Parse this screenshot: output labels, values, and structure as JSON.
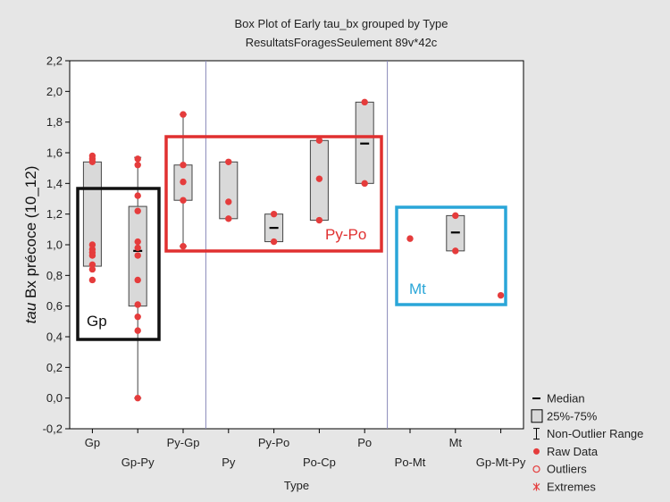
{
  "chart_data": {
    "type": "box",
    "title": "Box Plot of Early tau_bx grouped by  Type",
    "subtitle": "ResultatsForagesSeulement 89v*42c",
    "xlabel": "Type",
    "ylabel_italic": "tau",
    "ylabel_rest": " Bx précoce (10_12)",
    "ylim": [
      -0.2,
      2.2
    ],
    "yticks": [
      "-0,2",
      "0,0",
      "0,2",
      "0,4",
      "0,6",
      "0,8",
      "1,0",
      "1,2",
      "1,4",
      "1,6",
      "1,8",
      "2,0",
      "2,2"
    ],
    "ytick_values": [
      -0.2,
      0,
      0.2,
      0.4,
      0.6,
      0.8,
      1.0,
      1.2,
      1.4,
      1.6,
      1.8,
      2.0,
      2.2
    ],
    "categories": [
      "Gp",
      "Gp-Py",
      "Py-Gp",
      "Py",
      "Py-Po",
      "Po-Cp",
      "Po",
      "Po-Mt",
      "Mt",
      "Gp-Mt-Py"
    ],
    "boxes": [
      {
        "q1": 0.86,
        "q3": 1.54,
        "median": null,
        "whisker_low": null,
        "whisker_high": null
      },
      {
        "q1": 0.6,
        "q3": 1.25,
        "median": 0.96,
        "whisker_low": 0.0,
        "whisker_high": 1.57
      },
      {
        "q1": 1.29,
        "q3": 1.52,
        "median": null,
        "whisker_low": 0.99,
        "whisker_high": 1.85
      },
      {
        "q1": 1.17,
        "q3": 1.54,
        "median": null,
        "whisker_low": null,
        "whisker_high": null
      },
      {
        "q1": 1.02,
        "q3": 1.2,
        "median": 1.11,
        "whisker_low": null,
        "whisker_high": null
      },
      {
        "q1": 1.16,
        "q3": 1.68,
        "median": null,
        "whisker_low": null,
        "whisker_high": null
      },
      {
        "q1": 1.4,
        "q3": 1.93,
        "median": 1.66,
        "whisker_low": null,
        "whisker_high": null
      },
      null,
      {
        "q1": 0.96,
        "q3": 1.19,
        "median": 1.08,
        "whisker_low": null,
        "whisker_high": null
      },
      null
    ],
    "raw_data": [
      [
        1.58,
        1.56,
        1.54,
        1.0,
        0.97,
        0.95,
        0.93,
        0.87,
        0.84,
        0.77
      ],
      [
        1.56,
        1.52,
        1.32,
        1.22,
        1.02,
        0.98,
        0.93,
        0.77,
        0.61,
        0.53,
        0.44,
        0.0
      ],
      [
        1.85,
        1.52,
        1.41,
        1.29,
        0.99
      ],
      [
        1.54,
        1.28,
        1.17
      ],
      [
        1.2,
        1.02
      ],
      [
        1.68,
        1.43,
        1.16
      ],
      [
        1.93,
        1.4
      ],
      [
        1.04
      ],
      [
        1.19,
        0.96
      ],
      [
        0.67
      ]
    ],
    "group_labels": [
      {
        "text": "Gp",
        "color": "#111111"
      },
      {
        "text": "Py-Po",
        "color": "#e03030"
      },
      {
        "text": "Mt",
        "color": "#2aa6d8"
      }
    ],
    "group_box_colors": [
      "#111111",
      "#e03030",
      "#2aa6d8"
    ],
    "legend": {
      "position": "bottom-right",
      "items": [
        "Median",
        "25%-75%",
        "Non-Outlier Range",
        "Raw Data",
        "Outliers",
        "Extremes"
      ]
    },
    "colors": {
      "point": "#e53c3c",
      "box_fill": "#d9d9d9",
      "box_stroke": "#444444",
      "separator": "#8888b8",
      "plot_bg": "#ffffff",
      "page_bg": "#e6e6e6"
    }
  }
}
